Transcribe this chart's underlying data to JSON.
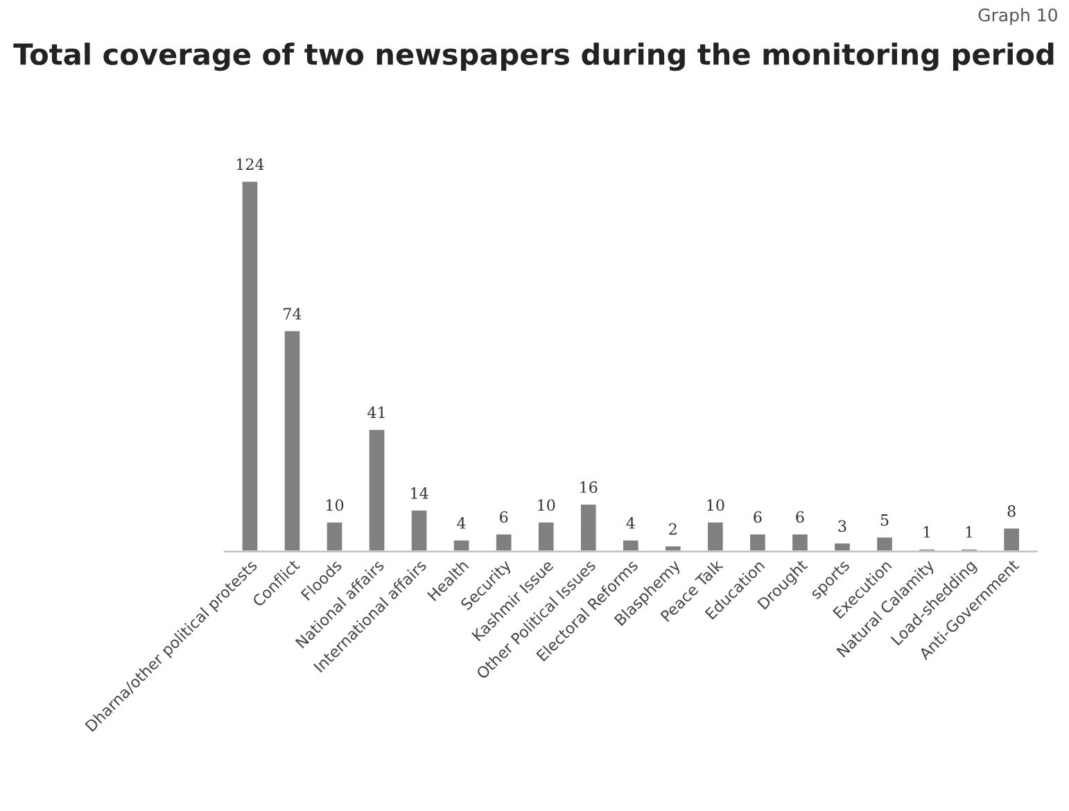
{
  "chart_data": {
    "type": "bar",
    "title": "Total coverage of two newspapers during the monitoring period",
    "categories": [
      "Dharna/other political protests",
      "Conflict",
      "Floods",
      "National affairs",
      "International affairs",
      "Health",
      "Security",
      "Kashmir Issue",
      "Other Political Issues",
      "Electoral Reforms",
      "Blasphemy",
      "Peace Talk",
      "Education",
      "Drought",
      "sports",
      "Execution",
      "Natural Calamity",
      "Load-shedding",
      "Anti-Government"
    ],
    "values": [
      124,
      74,
      10,
      41,
      14,
      4,
      6,
      10,
      16,
      4,
      2,
      10,
      6,
      6,
      3,
      5,
      1,
      1,
      8
    ],
    "color": "#808080",
    "data_labels": true,
    "grid": false,
    "legend": false,
    "annotations": [
      "Graph 10"
    ]
  }
}
